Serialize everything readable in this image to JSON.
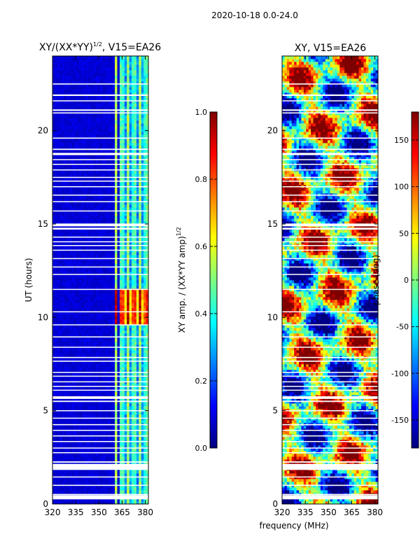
{
  "suptitle": "2020-10-18 0.0-24.0",
  "xlabel_shared": "frequency (MHz)",
  "colormap_stops": [
    "#00007f",
    "#0000ff",
    "#007fff",
    "#00ffff",
    "#7fff7f",
    "#ffff00",
    "#ff7f00",
    "#ff0000",
    "#7f0000"
  ],
  "chart_data": [
    {
      "type": "heatmap",
      "title_main": "XY/(XX*YY)",
      "title_exp": "1/2",
      "title_rest": ", V15=EA26",
      "ylabel": "UT (hours)",
      "x_range": [
        320,
        382
      ],
      "y_range": [
        0,
        24
      ],
      "x_ticks": [
        "320",
        "335",
        "350",
        "365",
        "380"
      ],
      "y_ticks": [
        "0",
        "5",
        "10",
        "15",
        "20"
      ],
      "value_range": [
        0.0,
        1.0
      ],
      "note": "Background ~0.05 below 360 MHz; band of elevated amplitude 360-382 MHz; peak ~0.9 around 10-11.5 UT."
    },
    {
      "type": "heatmap",
      "title": "XY, V15=EA26",
      "x_range": [
        320,
        382
      ],
      "y_range": [
        0,
        24
      ],
      "x_ticks": [
        "320",
        "335",
        "350",
        "365",
        "380"
      ],
      "y_ticks": [
        "0",
        "5",
        "10",
        "15",
        "20"
      ],
      "value_range": [
        -180,
        180
      ],
      "note": "Phase in degrees, spanning full range."
    }
  ],
  "colorbar_amp": {
    "label_main": "XY amp. / (XX*YY amp)",
    "label_exp": "1/2",
    "ticks": [
      "0.0",
      "0.2",
      "0.4",
      "0.6",
      "0.8",
      "1.0"
    ]
  },
  "colorbar_phase": {
    "label": "phase (deg)",
    "ticks": [
      "-150",
      "-100",
      "-50",
      "0",
      "50",
      "100",
      "150"
    ]
  }
}
